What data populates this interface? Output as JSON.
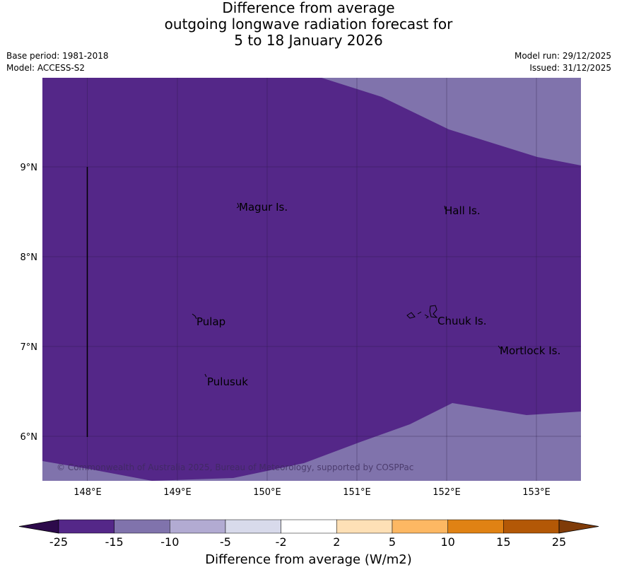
{
  "title": {
    "line1": "Difference from average",
    "line2": "outgoing longwave radiation forecast for",
    "line3": "5 to 18 January 2026"
  },
  "meta": {
    "base_period": "Base period: 1981-2018",
    "model": "Model: ACCESS-S2",
    "model_run": "Model run: 29/12/2025",
    "issued": "Issued: 31/12/2025"
  },
  "map": {
    "lon_labels": [
      "148°E",
      "149°E",
      "150°E",
      "151°E",
      "152°E",
      "153°E"
    ],
    "lat_labels": [
      "9°N",
      "8°N",
      "7°N",
      "6°N"
    ],
    "places": [
      "Magur Is.",
      "Hall Is.",
      "Pulap",
      "Chuuk Is.",
      "Mortlock Is.",
      "Pulusuk"
    ],
    "copyright": "© Commonwealth of Australia 2025, Bureau of Meteorology, supported by COSPPac"
  },
  "legend": {
    "title": "Difference from average (W/m2)",
    "tick_labels": [
      "-25",
      "-15",
      "-10",
      "-5",
      "-2",
      "2",
      "5",
      "10",
      "15",
      "25"
    ],
    "colors": [
      "#2d0a4b",
      "#542788",
      "#8073ac",
      "#b2abd2",
      "#d8daeb",
      "#ffffff",
      "#fee0b6",
      "#fdb863",
      "#e08214",
      "#b35806",
      "#7f3b08"
    ]
  }
}
